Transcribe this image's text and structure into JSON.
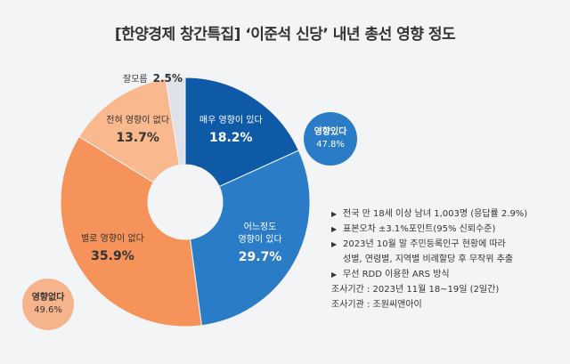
{
  "title": "[한양경제 창간특집] ‘이준석 신당’ 내년 총선 영향 정도",
  "chart_data": {
    "type": "pie",
    "donut": true,
    "slices": [
      {
        "label": "매우 영향이 있다",
        "value": 18.2,
        "display": "18.2%",
        "color": "#0e5aa7"
      },
      {
        "label": "어느정도\n영향이 있다",
        "value": 29.7,
        "display": "29.7%",
        "color": "#2a7cc7"
      },
      {
        "label": "별로 영향이 없다",
        "value": 35.9,
        "display": "35.9%",
        "color": "#f5935a"
      },
      {
        "label": "전혀 영향이 없다",
        "value": 13.7,
        "display": "13.7%",
        "color": "#f9b88e"
      },
      {
        "label": "잘모름",
        "value": 2.5,
        "display": "2.5%",
        "color": "#dfe2e8"
      }
    ],
    "groups": [
      {
        "label": "영향있다",
        "value": 47.8,
        "display": "47.8%",
        "color": "#2a7cc7"
      },
      {
        "label": "영향없다",
        "value": 49.6,
        "display": "49.6%",
        "color": "#f6b48c"
      }
    ]
  },
  "notes": [
    {
      "bullet": true,
      "text": "전국 만 18세 이상 남녀 1,003명 (응답률 2.9%)"
    },
    {
      "bullet": true,
      "text": "표본오차 ±3.1%포인트(95% 신뢰수준)"
    },
    {
      "bullet": true,
      "text": "2023년 10월 말 주민등록인구 현황에 따라"
    },
    {
      "bullet": false,
      "text": "성별, 연령별, 지역별 비례할당 후 무작위 추출"
    },
    {
      "bullet": true,
      "text": "무선 RDD 이용한 ARS 방식"
    },
    {
      "bullet": false,
      "text": "조사기간 : 2023년 11월 18~19일 (2일간)"
    },
    {
      "bullet": false,
      "text": "조사기관 : 조원씨앤아이"
    }
  ],
  "bullet_icon": "triangle-right-icon"
}
